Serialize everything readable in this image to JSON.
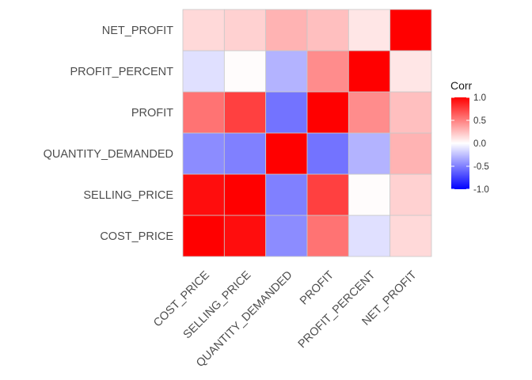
{
  "chart_data": {
    "type": "heatmap",
    "title": "",
    "xlabel": "",
    "ylabel": "",
    "x_categories": [
      "COST_PRICE",
      "SELLING_PRICE",
      "QUANTITY_DEMANDED",
      "PROFIT",
      "PROFIT_PERCENT",
      "NET_PROFIT"
    ],
    "y_categories": [
      "COST_PRICE",
      "SELLING_PRICE",
      "QUANTITY_DEMANDED",
      "PROFIT",
      "PROFIT_PERCENT",
      "NET_PROFIT"
    ],
    "values": [
      [
        1.0,
        0.95,
        -0.45,
        0.55,
        -0.12,
        0.15
      ],
      [
        0.95,
        1.0,
        -0.5,
        0.75,
        0.01,
        0.18
      ],
      [
        -0.45,
        -0.5,
        1.0,
        -0.55,
        -0.3,
        0.3
      ],
      [
        0.55,
        0.75,
        -0.55,
        1.0,
        0.45,
        0.25
      ],
      [
        -0.12,
        0.01,
        -0.3,
        0.45,
        1.0,
        0.1
      ],
      [
        0.15,
        0.18,
        0.3,
        0.25,
        0.1,
        1.0
      ]
    ],
    "legend": {
      "title": "Corr",
      "ticks": [
        "1.0",
        "0.5",
        "0.0",
        "-0.5",
        "-1.0"
      ],
      "range": [
        -1,
        1
      ],
      "placement": "right"
    },
    "colors": {
      "low": "#0000ff",
      "mid": "#ffffff",
      "high": "#ff0000",
      "tile_border": "#c8c8c8",
      "panel_grid": "#ebebeb"
    }
  }
}
